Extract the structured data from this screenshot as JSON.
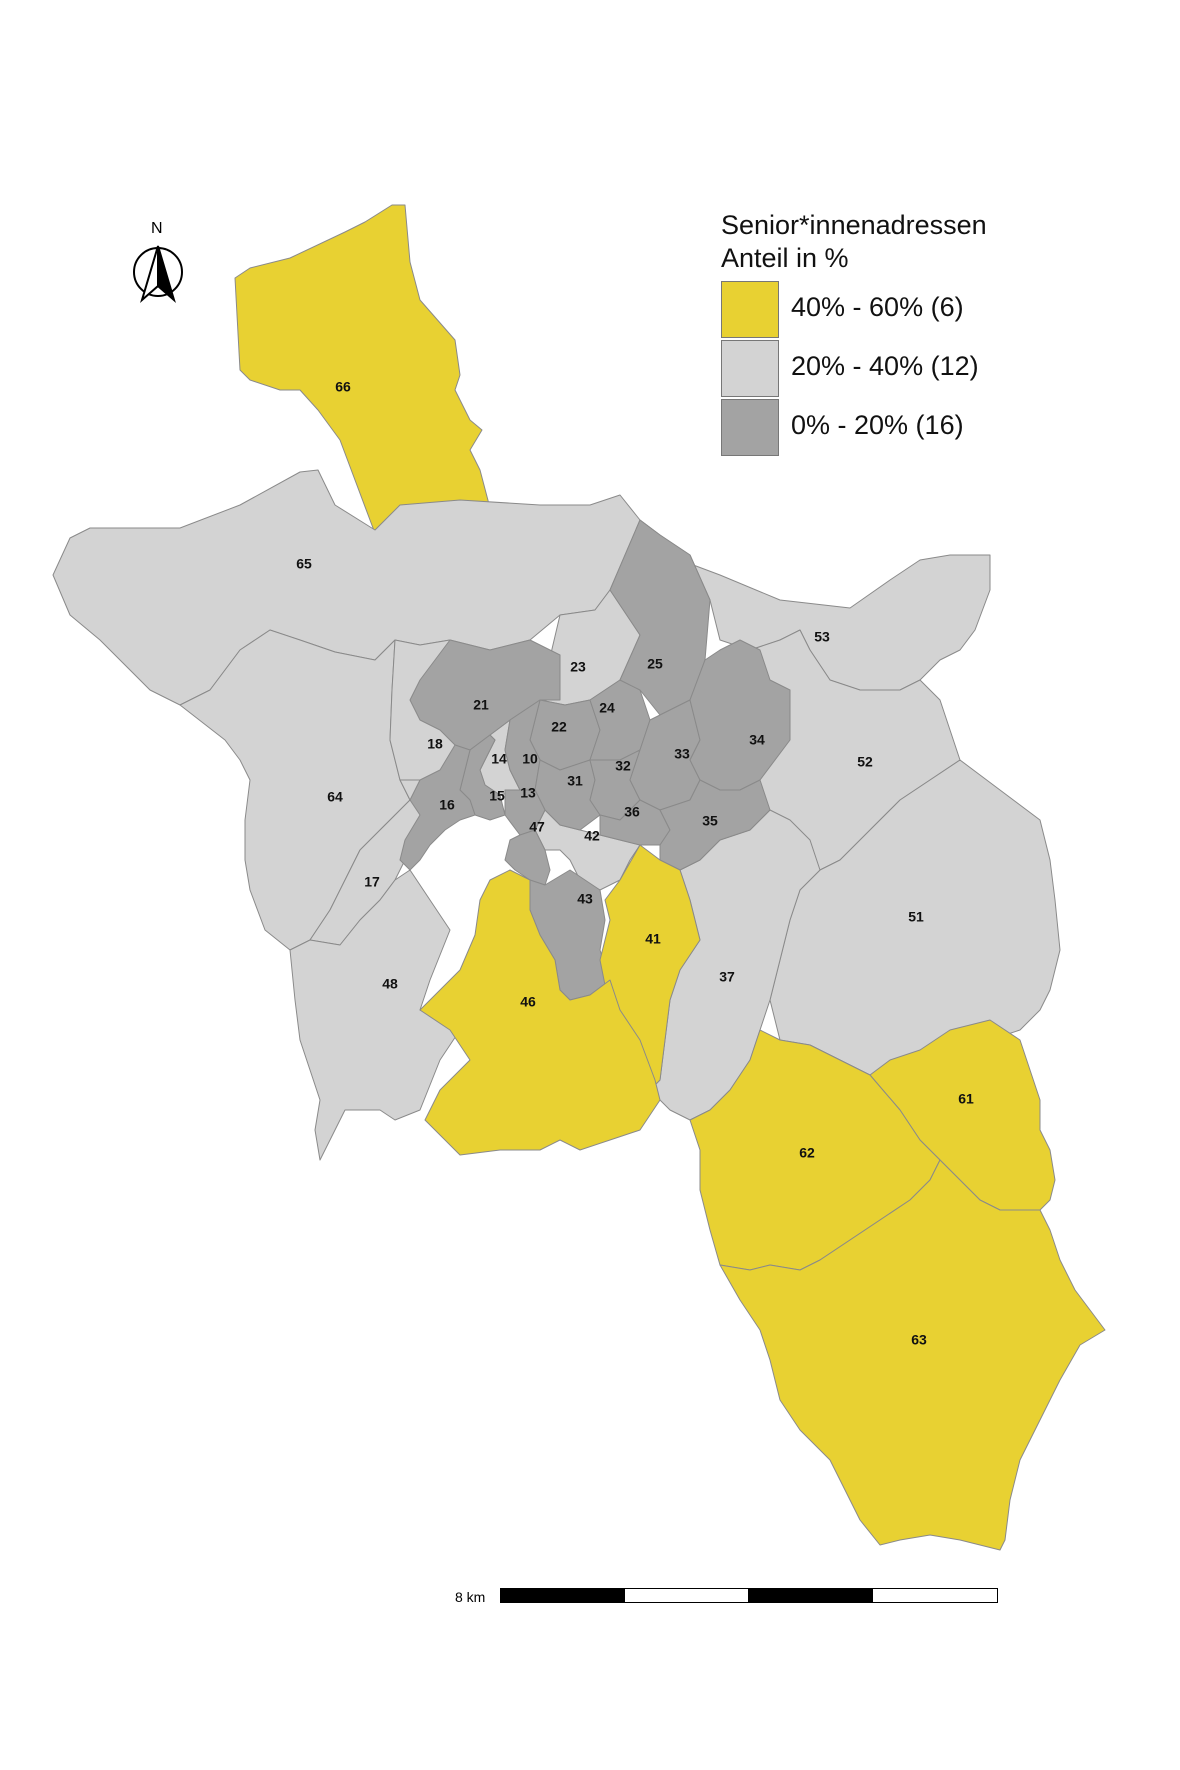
{
  "legend": {
    "title_line1": "Senior*innenadressen",
    "title_line2": "Anteil in %",
    "classes": [
      {
        "label": "40% - 60% (6)",
        "color": "#e8d132"
      },
      {
        "label": "20% - 40% (12)",
        "color": "#d3d3d3"
      },
      {
        "label": "0% - 20% (16)",
        "color": "#a3a3a3"
      }
    ]
  },
  "north_arrow": {
    "label": "N",
    "icon": "north-arrow-icon"
  },
  "scale_bar": {
    "label": "8 km",
    "segments": [
      "black",
      "white",
      "black",
      "white"
    ]
  },
  "colors": {
    "high": "#e8d132",
    "mid": "#d3d3d3",
    "low": "#a3a3a3",
    "border": "#8a8a8a"
  },
  "districts": [
    {
      "id": "66",
      "class": "high"
    },
    {
      "id": "65",
      "class": "mid"
    },
    {
      "id": "64",
      "class": "mid"
    },
    {
      "id": "18",
      "class": "mid"
    },
    {
      "id": "17",
      "class": "mid"
    },
    {
      "id": "48",
      "class": "mid"
    },
    {
      "id": "23",
      "class": "mid"
    },
    {
      "id": "53",
      "class": "mid"
    },
    {
      "id": "52",
      "class": "mid"
    },
    {
      "id": "51",
      "class": "mid"
    },
    {
      "id": "37",
      "class": "mid"
    },
    {
      "id": "42",
      "class": "mid"
    },
    {
      "id": "14",
      "class": "mid"
    },
    {
      "id": "21",
      "class": "low"
    },
    {
      "id": "22",
      "class": "low"
    },
    {
      "id": "24",
      "class": "low"
    },
    {
      "id": "25",
      "class": "low"
    },
    {
      "id": "10",
      "class": "low"
    },
    {
      "id": "31",
      "class": "low"
    },
    {
      "id": "32",
      "class": "low"
    },
    {
      "id": "33",
      "class": "low"
    },
    {
      "id": "34",
      "class": "low"
    },
    {
      "id": "15",
      "class": "low"
    },
    {
      "id": "13",
      "class": "low"
    },
    {
      "id": "16",
      "class": "low"
    },
    {
      "id": "36",
      "class": "low"
    },
    {
      "id": "35",
      "class": "low"
    },
    {
      "id": "47",
      "class": "low"
    },
    {
      "id": "43",
      "class": "low"
    },
    {
      "id": "41",
      "class": "high"
    },
    {
      "id": "46",
      "class": "high"
    },
    {
      "id": "61",
      "class": "high"
    },
    {
      "id": "62",
      "class": "high"
    },
    {
      "id": "63",
      "class": "high"
    }
  ]
}
